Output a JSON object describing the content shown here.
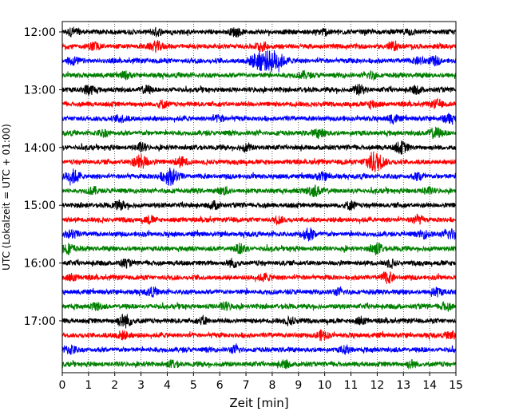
{
  "chart_data": {
    "type": "line",
    "title": "",
    "xlabel": "Zeit  [min]",
    "ylabel": "UTC (Lokalzeit = UTC + 01:00)",
    "xlim": [
      0,
      15
    ],
    "x_ticks": [
      "0",
      "1",
      "2",
      "3",
      "4",
      "5",
      "6",
      "7",
      "8",
      "9",
      "10",
      "11",
      "12",
      "13",
      "14",
      "15"
    ],
    "y_tick_labels": [
      "12:00",
      "13:00",
      "14:00",
      "15:00",
      "16:00",
      "17:00"
    ],
    "row_minutes": 15,
    "grid_x": true,
    "grid_style": "dotted",
    "trace_colors": [
      "#000000",
      "#ff0000",
      "#0000ff",
      "#008000"
    ],
    "rows": [
      {
        "start": "12:00",
        "color": "#000000",
        "events": [
          {
            "t": 0.4,
            "a": 0.4
          },
          {
            "t": 3.6,
            "a": 0.35
          },
          {
            "t": 6.6,
            "a": 0.4
          },
          {
            "t": 10.0,
            "a": 0.35
          },
          {
            "t": 13.2,
            "a": 0.35
          }
        ]
      },
      {
        "start": "12:15",
        "color": "#ff0000",
        "events": [
          {
            "t": 1.2,
            "a": 0.4
          },
          {
            "t": 3.6,
            "a": 0.55
          },
          {
            "t": 7.6,
            "a": 0.45
          },
          {
            "t": 12.6,
            "a": 0.4
          }
        ]
      },
      {
        "start": "12:30",
        "color": "#0000ff",
        "events": [
          {
            "t": 0.4,
            "a": 0.45
          },
          {
            "t": 7.5,
            "a": 1.0
          },
          {
            "t": 8.1,
            "a": 1.1
          },
          {
            "t": 13.6,
            "a": 0.4
          },
          {
            "t": 14.2,
            "a": 0.4
          }
        ]
      },
      {
        "start": "12:45",
        "color": "#008000",
        "events": [
          {
            "t": 2.4,
            "a": 0.35
          },
          {
            "t": 9.2,
            "a": 0.4
          },
          {
            "t": 11.8,
            "a": 0.35
          }
        ]
      },
      {
        "start": "13:00",
        "color": "#000000",
        "events": [
          {
            "t": 1.0,
            "a": 0.5
          },
          {
            "t": 3.2,
            "a": 0.35
          },
          {
            "t": 11.3,
            "a": 0.45
          },
          {
            "t": 13.5,
            "a": 0.35
          }
        ]
      },
      {
        "start": "13:15",
        "color": "#ff0000",
        "events": [
          {
            "t": 3.8,
            "a": 0.35
          },
          {
            "t": 11.8,
            "a": 0.4
          },
          {
            "t": 14.3,
            "a": 0.4
          }
        ]
      },
      {
        "start": "13:30",
        "color": "#0000ff",
        "events": [
          {
            "t": 2.2,
            "a": 0.4
          },
          {
            "t": 6.0,
            "a": 0.35
          },
          {
            "t": 12.6,
            "a": 0.45
          },
          {
            "t": 14.7,
            "a": 0.45
          }
        ]
      },
      {
        "start": "13:45",
        "color": "#008000",
        "events": [
          {
            "t": 1.6,
            "a": 0.35
          },
          {
            "t": 9.8,
            "a": 0.45
          },
          {
            "t": 14.2,
            "a": 0.55
          }
        ]
      },
      {
        "start": "14:00",
        "color": "#000000",
        "events": [
          {
            "t": 3.0,
            "a": 0.4
          },
          {
            "t": 7.0,
            "a": 0.35
          },
          {
            "t": 12.9,
            "a": 0.6
          }
        ]
      },
      {
        "start": "14:15",
        "color": "#ff0000",
        "events": [
          {
            "t": 3.0,
            "a": 0.75
          },
          {
            "t": 4.5,
            "a": 0.5
          },
          {
            "t": 11.9,
            "a": 1.1
          }
        ]
      },
      {
        "start": "14:30",
        "color": "#0000ff",
        "events": [
          {
            "t": 0.4,
            "a": 0.7
          },
          {
            "t": 4.1,
            "a": 0.9
          },
          {
            "t": 9.9,
            "a": 0.45
          },
          {
            "t": 13.6,
            "a": 0.4
          }
        ]
      },
      {
        "start": "14:45",
        "color": "#008000",
        "events": [
          {
            "t": 1.2,
            "a": 0.35
          },
          {
            "t": 6.2,
            "a": 0.35
          },
          {
            "t": 9.6,
            "a": 0.6
          },
          {
            "t": 13.9,
            "a": 0.35
          }
        ]
      },
      {
        "start": "15:00",
        "color": "#000000",
        "events": [
          {
            "t": 2.2,
            "a": 0.45
          },
          {
            "t": 5.8,
            "a": 0.35
          },
          {
            "t": 11.0,
            "a": 0.4
          }
        ]
      },
      {
        "start": "15:15",
        "color": "#ff0000",
        "events": [
          {
            "t": 3.3,
            "a": 0.35
          },
          {
            "t": 8.2,
            "a": 0.35
          },
          {
            "t": 13.5,
            "a": 0.45
          }
        ]
      },
      {
        "start": "15:30",
        "color": "#0000ff",
        "events": [
          {
            "t": 0.4,
            "a": 0.45
          },
          {
            "t": 9.4,
            "a": 0.65
          },
          {
            "t": 13.8,
            "a": 0.4
          },
          {
            "t": 14.8,
            "a": 0.55
          }
        ]
      },
      {
        "start": "15:45",
        "color": "#008000",
        "events": [
          {
            "t": 0.2,
            "a": 0.6
          },
          {
            "t": 6.8,
            "a": 0.45
          },
          {
            "t": 12.0,
            "a": 0.55
          }
        ]
      },
      {
        "start": "16:00",
        "color": "#000000",
        "events": [
          {
            "t": 2.4,
            "a": 0.35
          },
          {
            "t": 6.5,
            "a": 0.4
          },
          {
            "t": 12.5,
            "a": 0.35
          }
        ]
      },
      {
        "start": "16:15",
        "color": "#ff0000",
        "events": [
          {
            "t": 0.4,
            "a": 0.35
          },
          {
            "t": 7.7,
            "a": 0.4
          },
          {
            "t": 12.4,
            "a": 0.55
          }
        ]
      },
      {
        "start": "16:30",
        "color": "#0000ff",
        "events": [
          {
            "t": 3.4,
            "a": 0.45
          },
          {
            "t": 10.5,
            "a": 0.35
          },
          {
            "t": 14.3,
            "a": 0.45
          }
        ]
      },
      {
        "start": "16:45",
        "color": "#008000",
        "events": [
          {
            "t": 1.3,
            "a": 0.35
          },
          {
            "t": 6.2,
            "a": 0.4
          },
          {
            "t": 14.6,
            "a": 0.4
          }
        ]
      },
      {
        "start": "17:00",
        "color": "#000000",
        "events": [
          {
            "t": 2.4,
            "a": 0.7
          },
          {
            "t": 5.4,
            "a": 0.35
          },
          {
            "t": 8.7,
            "a": 0.4
          },
          {
            "t": 11.4,
            "a": 0.35
          }
        ]
      },
      {
        "start": "17:15",
        "color": "#ff0000",
        "events": [
          {
            "t": 2.3,
            "a": 0.45
          },
          {
            "t": 9.9,
            "a": 0.45
          },
          {
            "t": 14.8,
            "a": 0.4
          }
        ]
      },
      {
        "start": "17:30",
        "color": "#0000ff",
        "events": [
          {
            "t": 0.3,
            "a": 0.45
          },
          {
            "t": 6.6,
            "a": 0.35
          },
          {
            "t": 10.8,
            "a": 0.35
          }
        ]
      },
      {
        "start": "17:45",
        "color": "#008000",
        "events": [
          {
            "t": 4.2,
            "a": 0.35
          },
          {
            "t": 8.5,
            "a": 0.35
          },
          {
            "t": 13.3,
            "a": 0.35
          }
        ]
      }
    ]
  }
}
